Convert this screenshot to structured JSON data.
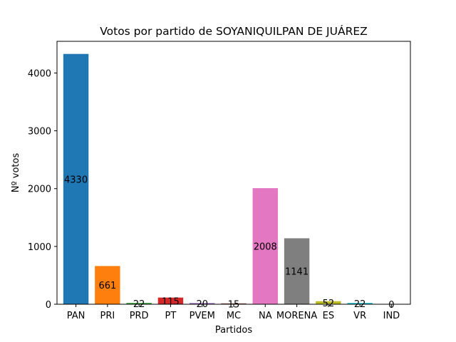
{
  "chart_data": {
    "type": "bar",
    "title": "Votos por partido de SOYANIQUILPAN DE JUÁREZ",
    "xlabel": "Partidos",
    "ylabel": "Nº votos",
    "categories": [
      "PAN",
      "PRI",
      "PRD",
      "PT",
      "PVEM",
      "MC",
      "NA",
      "MORENA",
      "ES",
      "VR",
      "IND"
    ],
    "values": [
      4330,
      661,
      22,
      115,
      20,
      15,
      2008,
      1141,
      52,
      22,
      0
    ],
    "colors": [
      "#1f77b4",
      "#ff7f0e",
      "#2ca02c",
      "#d62728",
      "#9467bd",
      "#8c564b",
      "#e377c2",
      "#7f7f7f",
      "#bcbd22",
      "#17becf",
      "#1f77b4"
    ],
    "ylim": [
      0,
      4548
    ],
    "yticks": [
      0,
      1000,
      2000,
      3000,
      4000
    ],
    "grid": false,
    "legend": "none"
  }
}
